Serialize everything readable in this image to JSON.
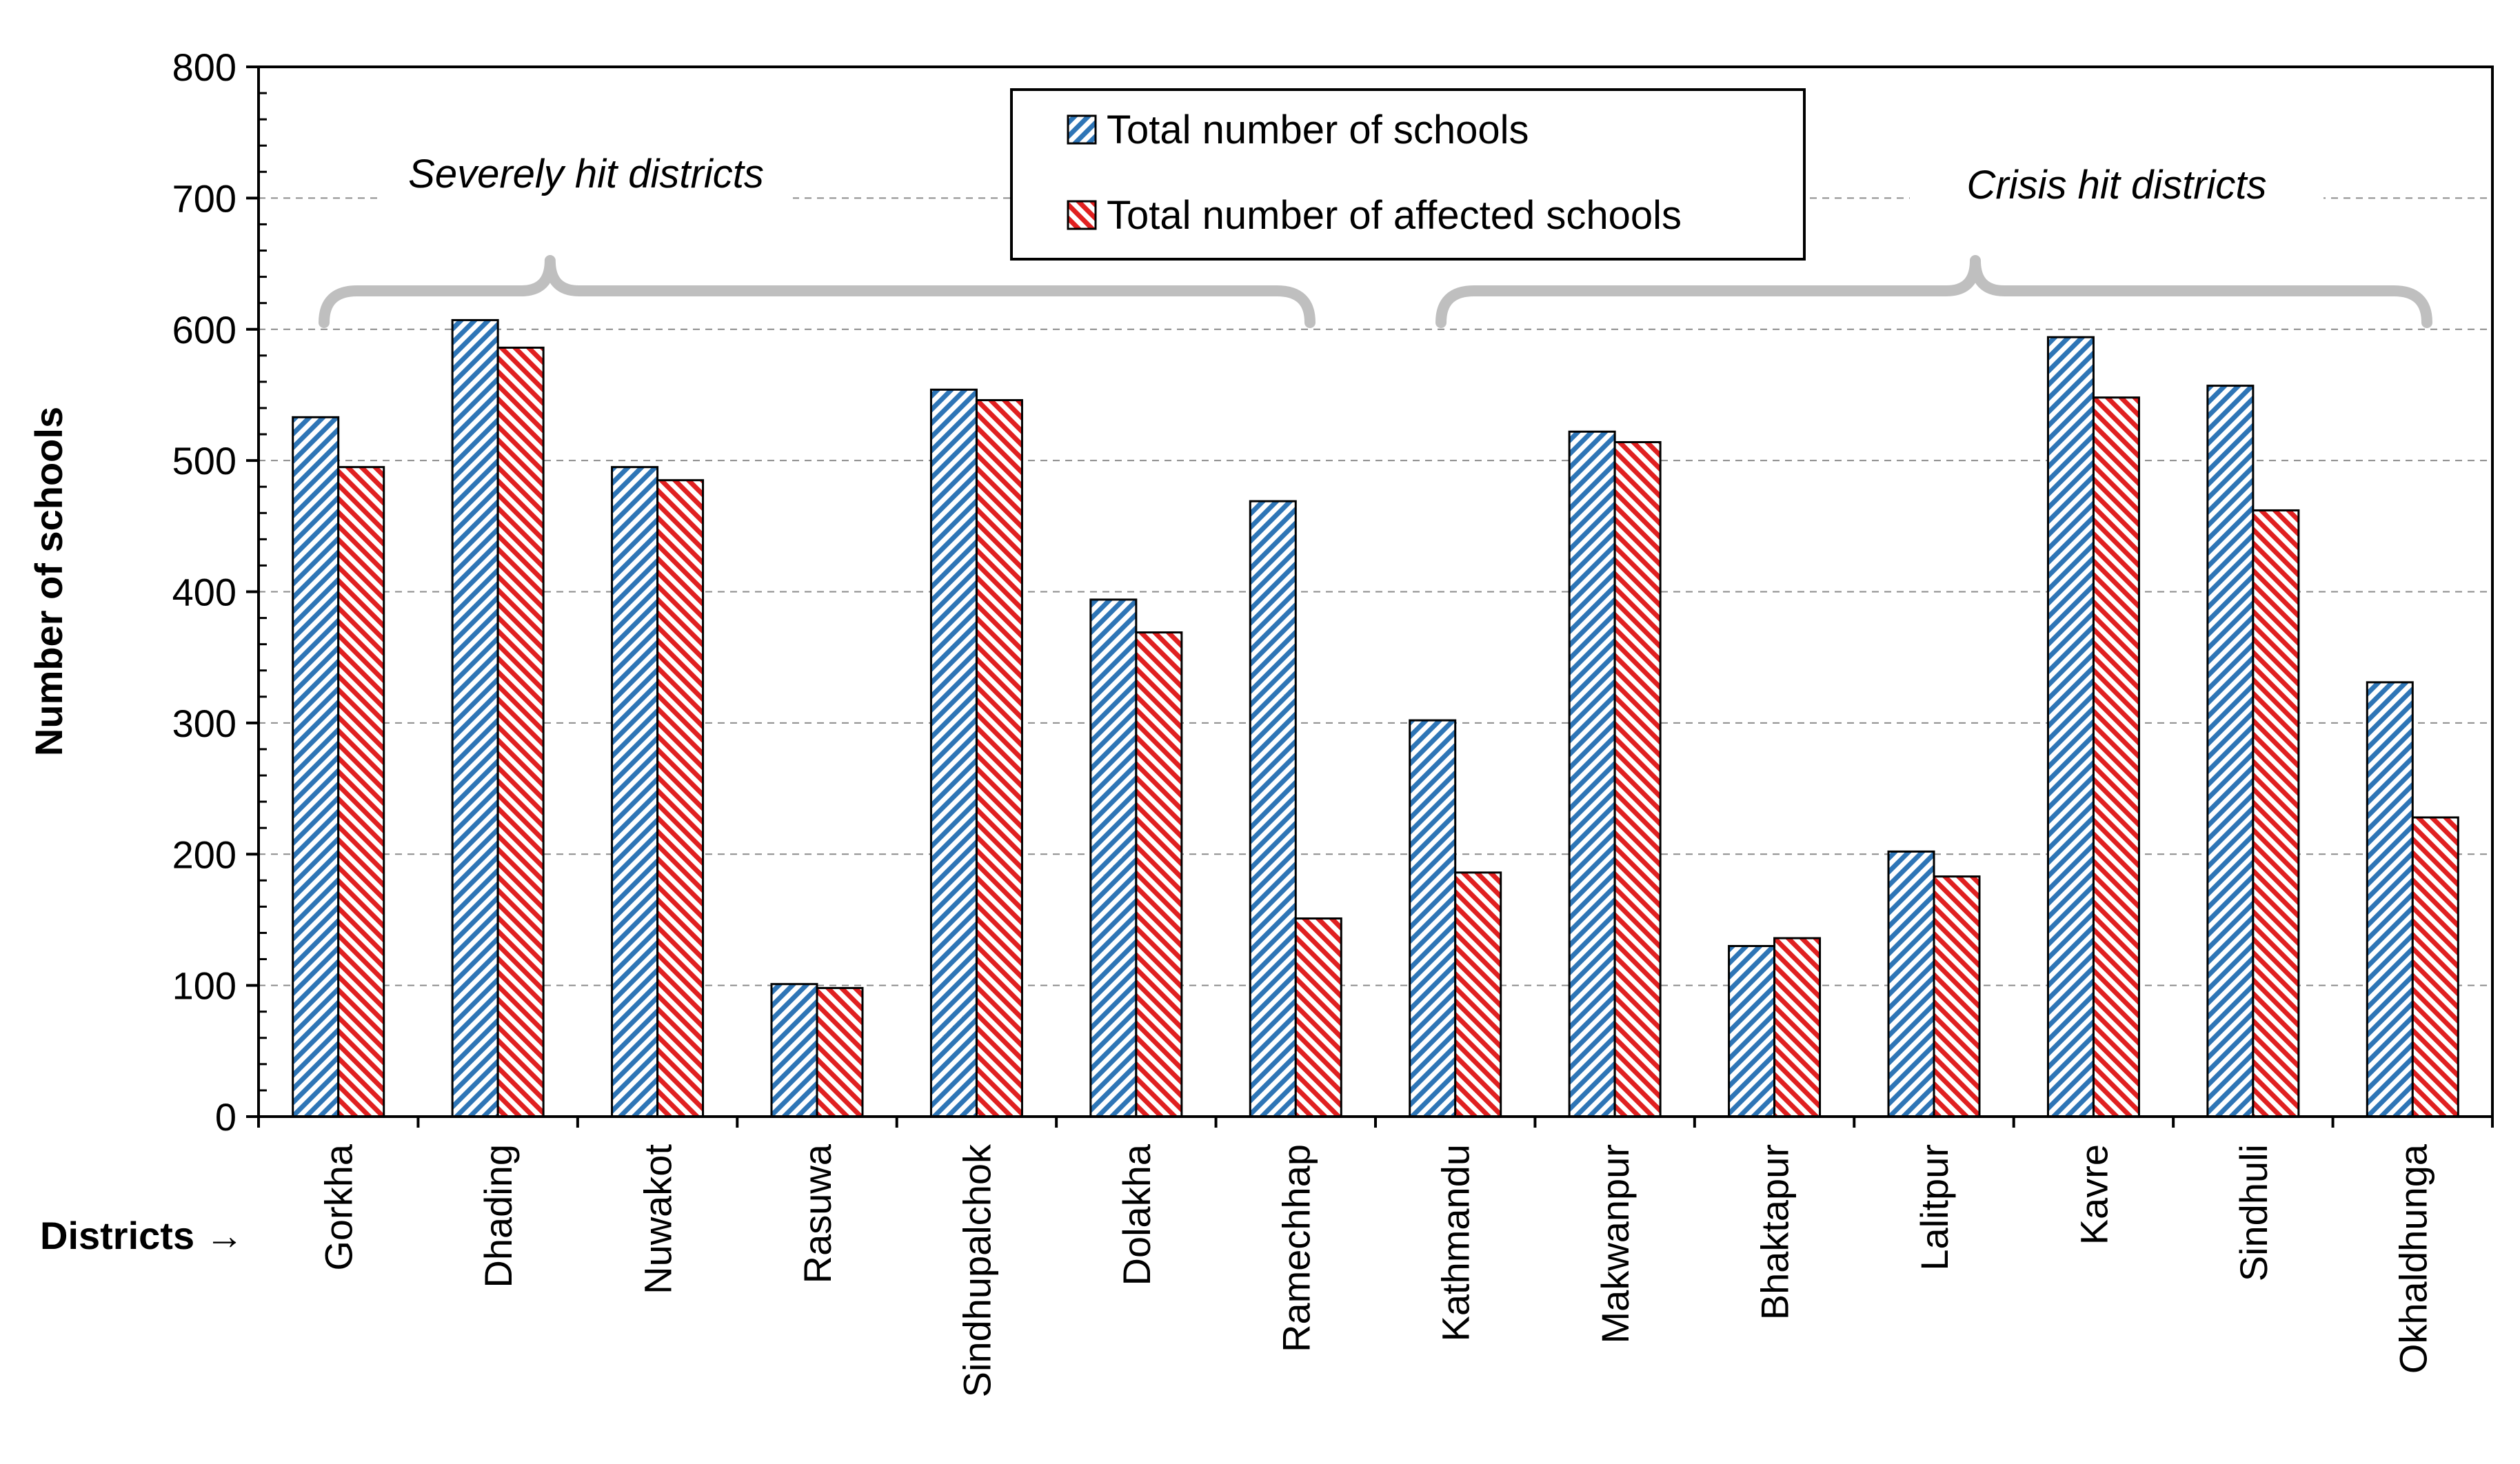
{
  "chart_data": {
    "type": "bar",
    "title": "",
    "xlabel": "Districts →",
    "ylabel": "Number of schools",
    "ylim": [
      0,
      800
    ],
    "yticks": [
      0,
      100,
      200,
      300,
      400,
      500,
      600,
      700,
      800
    ],
    "grid": true,
    "legend_position": "top-center",
    "categories": [
      "Gorkha",
      "Dhading",
      "Nuwakot",
      "Rasuwa",
      "Sindhupalchok",
      "Dolakha",
      "Ramechhap",
      "Kathmandu",
      "Makwanpur",
      "Bhaktapur",
      "Lalitpur",
      "Kavre",
      "Sindhuli",
      "Okhaldhunga"
    ],
    "series": [
      {
        "name": "Total number of schools",
        "color": "#2e75b6",
        "values": [
          533,
          607,
          495,
          101,
          554,
          394,
          469,
          302,
          522,
          130,
          202,
          594,
          557,
          331
        ]
      },
      {
        "name": "Total number of affected schools",
        "color": "#e02020",
        "values": [
          495,
          586,
          485,
          98,
          546,
          369,
          151,
          186,
          514,
          136,
          183,
          548,
          462,
          228
        ]
      }
    ],
    "annotations": [
      {
        "text": "Severely hit districts",
        "from_category": 0,
        "to_category": 6
      },
      {
        "text": "Crisis hit districts",
        "from_category": 7,
        "to_category": 13
      }
    ]
  }
}
